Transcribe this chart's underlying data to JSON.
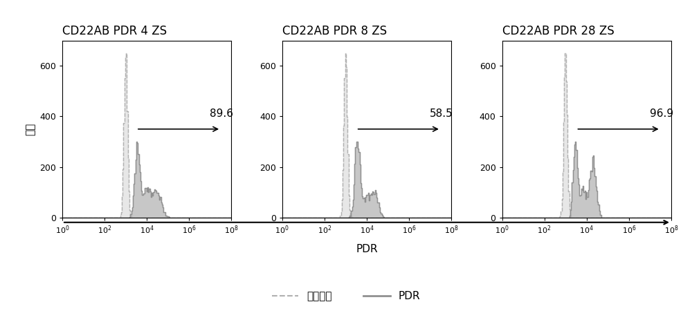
{
  "titles": [
    "CD22AB PDR 4 ZS",
    "CD22AB PDR 8 ZS",
    "CD22AB PDR 28 ZS"
  ],
  "annotations": [
    "89.6",
    "58.5",
    "96.9"
  ],
  "xlabel": "PDR",
  "ylabel": "计数",
  "legend_labels": [
    "未染色的",
    "PDR"
  ],
  "ylim": [
    0,
    700
  ],
  "yticks": [
    0,
    200,
    400,
    600
  ],
  "background_color": "#ffffff",
  "plot_bg": "#ffffff",
  "unstained_color": "#b0b0b0",
  "pdr_color": "#909090",
  "title_fontsize": 12,
  "label_fontsize": 11,
  "annotation_fontsize": 11,
  "gate_y": 350,
  "gate_x_start_log": 3.5,
  "xlim_log": [
    1.0,
    100000000.0
  ]
}
